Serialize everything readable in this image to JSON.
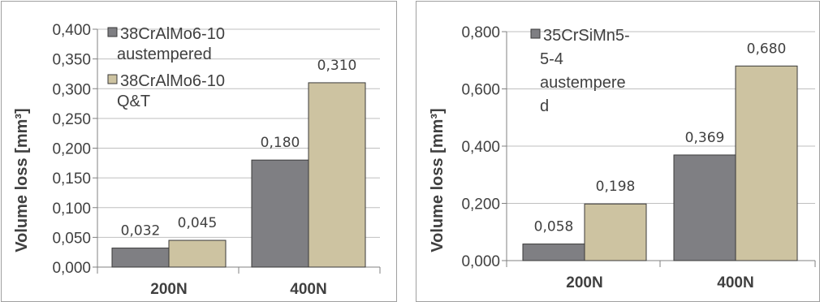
{
  "colors": {
    "austempered": "#7f7f83",
    "qt": "#cdc3a1",
    "bar_border": "#3a3a3a",
    "grid": "#bfbfbf",
    "axis": "#808080",
    "frame": "#a0a0a0"
  },
  "chart_data": [
    {
      "type": "bar",
      "ylabel": "Volume loss [mm³]",
      "categories": [
        "200N",
        "400N"
      ],
      "ylim": [
        0,
        0.4
      ],
      "yticks": [
        "0,000",
        "0,050",
        "0,100",
        "0,150",
        "0,200",
        "0,250",
        "0,300",
        "0,350",
        "0,400"
      ],
      "grid": true,
      "legend_position": "top-left",
      "series": [
        {
          "name": [
            "38CrAlMo6-10",
            "austempered"
          ],
          "values": [
            0.032,
            0.18
          ],
          "labels": [
            "0,032",
            "0,180"
          ]
        },
        {
          "name": [
            "38CrAlMo6-10",
            "Q&T"
          ],
          "values": [
            0.045,
            0.31
          ],
          "labels": [
            "0,045",
            "0,310"
          ]
        }
      ]
    },
    {
      "type": "bar",
      "ylabel": "Volume loss [mm³]",
      "categories": [
        "200N",
        "400N"
      ],
      "ylim": [
        0,
        0.8
      ],
      "yticks": [
        "0,000",
        "0,200",
        "0,400",
        "0,600",
        "0,800"
      ],
      "grid": true,
      "legend_position": "top-left",
      "series": [
        {
          "name": [
            "35CrSiMn5-",
            "5-4",
            "austempere",
            "d"
          ],
          "values": [
            0.058,
            0.369
          ],
          "labels": [
            "0,058",
            "0,369"
          ]
        },
        {
          "values": [
            0.198,
            0.68
          ],
          "labels": [
            "0,198",
            "0,680"
          ]
        }
      ]
    }
  ]
}
